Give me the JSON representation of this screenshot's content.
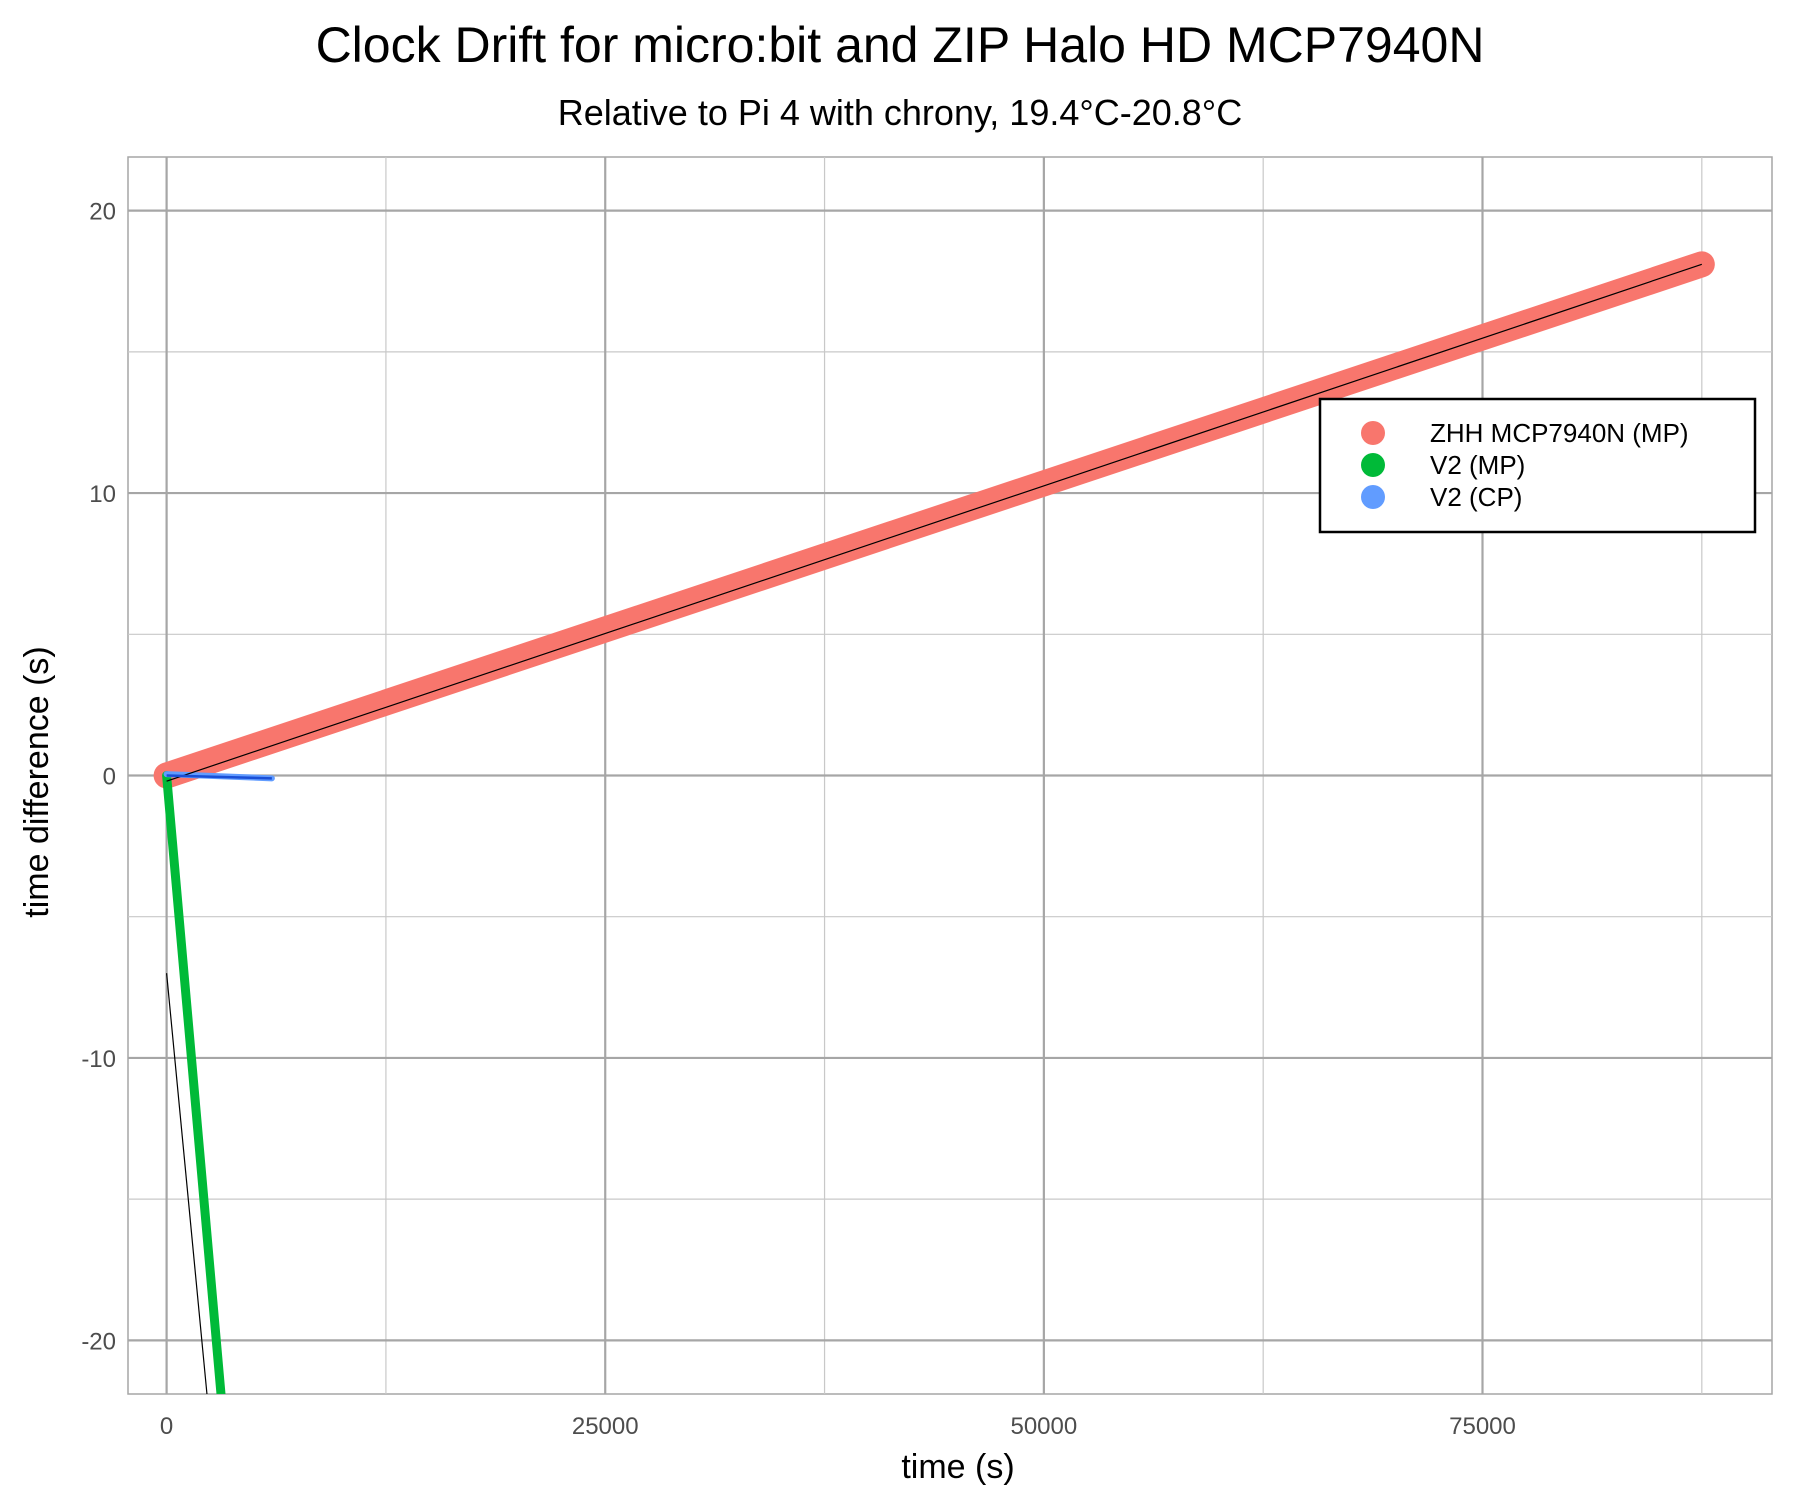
{
  "chart_data": {
    "type": "line",
    "title": "Clock Drift for micro:bit and ZIP Halo HD MCP7940N",
    "subtitle": "Relative to Pi 4 with chrony, 19.4°C-20.8°C",
    "xlabel": "time (s)",
    "ylabel": "time difference (s)",
    "xlim": [
      -2200,
      91500
    ],
    "ylim": [
      -21.9,
      21.9
    ],
    "x_major_ticks": [
      0,
      25000,
      50000,
      75000
    ],
    "x_tick_labels": [
      "0",
      "25000",
      "50000",
      "75000"
    ],
    "x_minor_ticks": [
      12500,
      37500,
      62500,
      87500
    ],
    "y_major_ticks": [
      -20,
      -10,
      0,
      10,
      20
    ],
    "y_tick_labels": [
      "-20",
      "-10",
      "0",
      "10",
      "20"
    ],
    "y_minor_ticks": [
      -15,
      -5,
      5,
      15
    ],
    "grid": true,
    "legend_position": "right",
    "series": [
      {
        "name": "ZHH MCP7940N (MP)",
        "color": "#F8766D",
        "x": [
          0,
          87500
        ],
        "y": [
          0.0,
          18.1
        ],
        "fit": {
          "x": [
            0,
            87500
          ],
          "y": [
            -0.2,
            18.1
          ],
          "color": "#000000"
        }
      },
      {
        "name": "V2 (MP)",
        "color": "#00BA38",
        "x": [
          0,
          3100
        ],
        "y": [
          0.0,
          -21.9
        ],
        "fit": {
          "x": [
            0,
            2300
          ],
          "y": [
            -7.0,
            -21.9
          ],
          "color": "#000000"
        }
      },
      {
        "name": "V2 (CP)",
        "color": "#619CFF",
        "x": [
          0,
          6000
        ],
        "y": [
          0.05,
          -0.1
        ],
        "fit": {
          "x": [
            0,
            6000
          ],
          "y": [
            0.0,
            -0.1
          ],
          "color": "#1a4fd6"
        }
      }
    ]
  }
}
